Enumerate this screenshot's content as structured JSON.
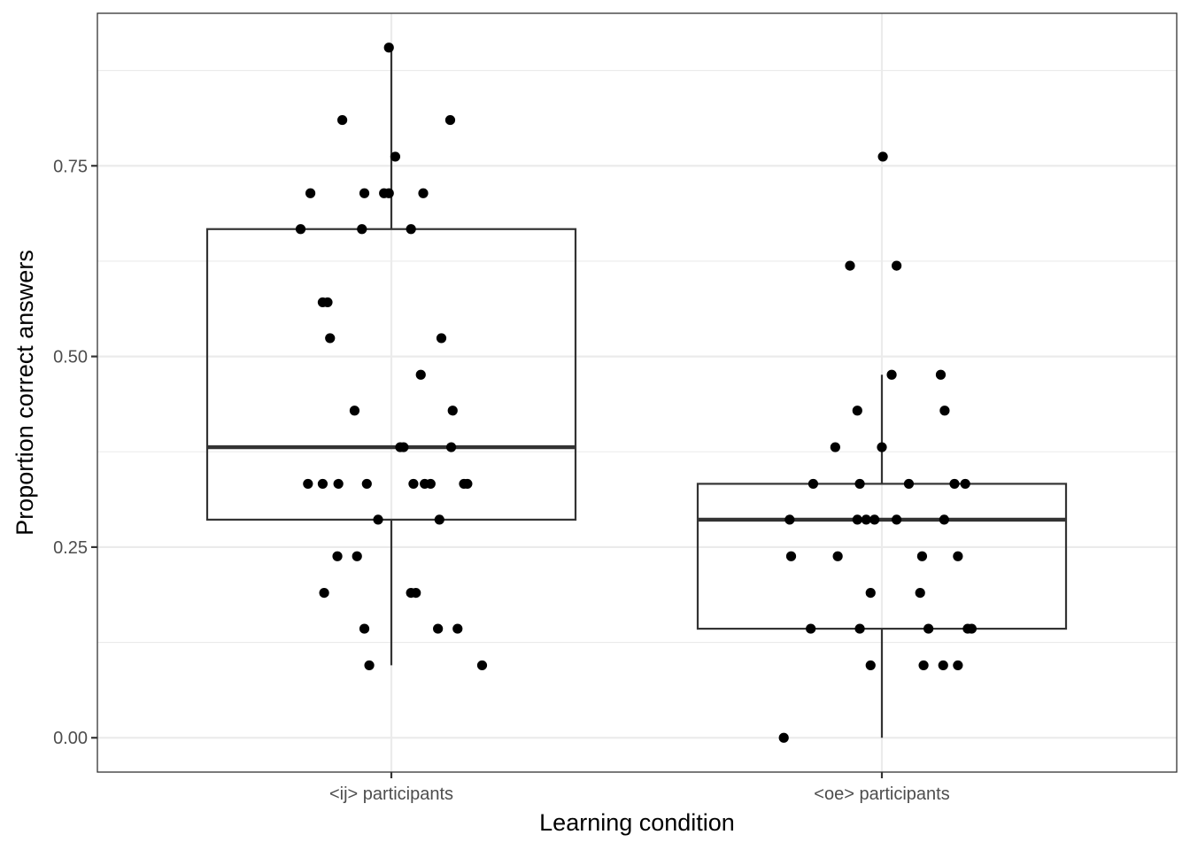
{
  "chart_data": {
    "type": "boxplot",
    "title": "",
    "xlabel": "Learning condition",
    "ylabel": "Proportion correct answers",
    "ylim": [
      -0.045,
      0.95
    ],
    "y_ticks": [
      0.0,
      0.25,
      0.5,
      0.75
    ],
    "y_tick_labels": [
      "0.00",
      "0.25",
      "0.50",
      "0.75"
    ],
    "grid": true,
    "theme": "black-and-white",
    "categories": [
      "<ij> participants",
      "<oe> participants"
    ],
    "boxes": [
      {
        "category": "<ij> participants",
        "whisker_low": 0.095,
        "q1": 0.286,
        "median": 0.381,
        "q3": 0.667,
        "whisker_high": 0.905
      },
      {
        "category": "<oe> participants",
        "whisker_low": 0.0,
        "q1": 0.143,
        "median": 0.286,
        "q3": 0.333,
        "whisker_high": 0.476
      }
    ],
    "points": [
      {
        "category": "<ij> participants",
        "values": [
          {
            "jitter": -0.005,
            "y": 0.905
          },
          {
            "jitter": -0.1,
            "y": 0.81
          },
          {
            "jitter": 0.12,
            "y": 0.81
          },
          {
            "jitter": 0.008,
            "y": 0.762
          },
          {
            "jitter": -0.165,
            "y": 0.714
          },
          {
            "jitter": -0.055,
            "y": 0.714
          },
          {
            "jitter": -0.015,
            "y": 0.714
          },
          {
            "jitter": -0.005,
            "y": 0.714
          },
          {
            "jitter": 0.065,
            "y": 0.714
          },
          {
            "jitter": -0.185,
            "y": 0.667
          },
          {
            "jitter": -0.06,
            "y": 0.667
          },
          {
            "jitter": 0.04,
            "y": 0.667
          },
          {
            "jitter": -0.14,
            "y": 0.571
          },
          {
            "jitter": -0.13,
            "y": 0.571
          },
          {
            "jitter": -0.125,
            "y": 0.524
          },
          {
            "jitter": 0.102,
            "y": 0.524
          },
          {
            "jitter": 0.06,
            "y": 0.476
          },
          {
            "jitter": -0.075,
            "y": 0.429
          },
          {
            "jitter": 0.125,
            "y": 0.429
          },
          {
            "jitter": 0.018,
            "y": 0.381
          },
          {
            "jitter": 0.025,
            "y": 0.381
          },
          {
            "jitter": 0.122,
            "y": 0.381
          },
          {
            "jitter": -0.17,
            "y": 0.333
          },
          {
            "jitter": -0.14,
            "y": 0.333
          },
          {
            "jitter": -0.108,
            "y": 0.333
          },
          {
            "jitter": -0.05,
            "y": 0.333
          },
          {
            "jitter": 0.045,
            "y": 0.333
          },
          {
            "jitter": 0.068,
            "y": 0.333
          },
          {
            "jitter": 0.08,
            "y": 0.333
          },
          {
            "jitter": 0.148,
            "y": 0.333
          },
          {
            "jitter": 0.155,
            "y": 0.333
          },
          {
            "jitter": -0.027,
            "y": 0.286
          },
          {
            "jitter": 0.098,
            "y": 0.286
          },
          {
            "jitter": -0.11,
            "y": 0.238
          },
          {
            "jitter": -0.07,
            "y": 0.238
          },
          {
            "jitter": -0.137,
            "y": 0.19
          },
          {
            "jitter": 0.04,
            "y": 0.19
          },
          {
            "jitter": 0.05,
            "y": 0.19
          },
          {
            "jitter": -0.055,
            "y": 0.143
          },
          {
            "jitter": 0.095,
            "y": 0.143
          },
          {
            "jitter": 0.135,
            "y": 0.143
          },
          {
            "jitter": -0.045,
            "y": 0.095
          },
          {
            "jitter": 0.185,
            "y": 0.095
          }
        ]
      },
      {
        "category": "<oe> participants",
        "values": [
          {
            "jitter": 0.002,
            "y": 0.762
          },
          {
            "jitter": -0.065,
            "y": 0.619
          },
          {
            "jitter": 0.03,
            "y": 0.619
          },
          {
            "jitter": 0.02,
            "y": 0.476
          },
          {
            "jitter": 0.12,
            "y": 0.476
          },
          {
            "jitter": -0.05,
            "y": 0.429
          },
          {
            "jitter": 0.128,
            "y": 0.429
          },
          {
            "jitter": -0.095,
            "y": 0.381
          },
          {
            "jitter": 0.0,
            "y": 0.381
          },
          {
            "jitter": -0.14,
            "y": 0.333
          },
          {
            "jitter": -0.045,
            "y": 0.333
          },
          {
            "jitter": 0.055,
            "y": 0.333
          },
          {
            "jitter": 0.148,
            "y": 0.333
          },
          {
            "jitter": 0.17,
            "y": 0.333
          },
          {
            "jitter": -0.188,
            "y": 0.286
          },
          {
            "jitter": -0.05,
            "y": 0.286
          },
          {
            "jitter": -0.032,
            "y": 0.286
          },
          {
            "jitter": -0.015,
            "y": 0.286
          },
          {
            "jitter": 0.03,
            "y": 0.286
          },
          {
            "jitter": 0.127,
            "y": 0.286
          },
          {
            "jitter": -0.185,
            "y": 0.238
          },
          {
            "jitter": -0.09,
            "y": 0.238
          },
          {
            "jitter": 0.082,
            "y": 0.238
          },
          {
            "jitter": 0.155,
            "y": 0.238
          },
          {
            "jitter": -0.023,
            "y": 0.19
          },
          {
            "jitter": 0.078,
            "y": 0.19
          },
          {
            "jitter": -0.145,
            "y": 0.143
          },
          {
            "jitter": -0.045,
            "y": 0.143
          },
          {
            "jitter": 0.095,
            "y": 0.143
          },
          {
            "jitter": 0.175,
            "y": 0.143
          },
          {
            "jitter": 0.183,
            "y": 0.143
          },
          {
            "jitter": -0.023,
            "y": 0.095
          },
          {
            "jitter": 0.085,
            "y": 0.095
          },
          {
            "jitter": 0.125,
            "y": 0.095
          },
          {
            "jitter": 0.155,
            "y": 0.095
          },
          {
            "jitter": -0.2,
            "y": 0.0
          }
        ]
      }
    ]
  }
}
